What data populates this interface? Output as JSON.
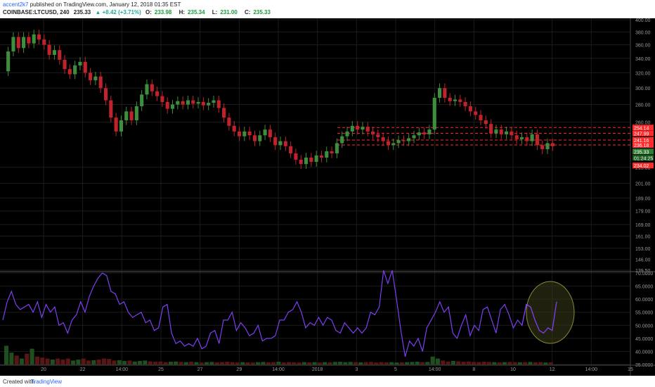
{
  "header": {
    "user": "accent2k7",
    "published": "published on TradingView.com, January 12, 2018 01:35 EST",
    "symbol": "COINBASE:LTCUSD, 240",
    "last": "235.33",
    "change": "▲ +8.42 (+3.71%)",
    "o_label": "O:",
    "o_value": "233.98",
    "h_label": "H:",
    "h_value": "235.34",
    "l_label": "L:",
    "l_value": "231.00",
    "c_label": "C:",
    "c_value": "235.33"
  },
  "footer": {
    "created_with": "Created with",
    "brand": "TradingView"
  },
  "colors": {
    "up": "#3e8e3e",
    "down": "#c0232b",
    "rsi": "#7e3ff2",
    "level": "#ff2a2a",
    "grid": "#1c1c1c",
    "axis_text": "#9a9a9a",
    "circle_fill": "#3a3a1a",
    "circle_stroke": "#8a8a3a"
  },
  "chart_data": [
    {
      "type": "candlestick",
      "title": "",
      "ylim": [
        139.5,
        400
      ],
      "log_scale": true,
      "price_ticks": [
        "400.00",
        "380.00",
        "360.00",
        "340.00",
        "320.00",
        "300.00",
        "280.00",
        "260.00",
        "215.00",
        "201.00",
        "189.00",
        "179.00",
        "169.00",
        "161.00",
        "153.00",
        "146.00",
        "139.50"
      ],
      "x_ticks": [
        "20",
        "22",
        "14:00",
        "25",
        "27",
        "29",
        "14:00",
        "2018",
        "3",
        "5",
        "14:00",
        "8",
        "10",
        "12",
        "14:00",
        "15"
      ],
      "levels": [
        254.14,
        247.99,
        241.16,
        236.18
      ],
      "badges": [
        {
          "label": "254.14",
          "kind": "level"
        },
        {
          "label": "247.99",
          "kind": "level"
        },
        {
          "label": "241.16",
          "kind": "level"
        },
        {
          "label": "236.18",
          "kind": "level"
        },
        {
          "label": "235.33",
          "kind": "last"
        },
        {
          "label": "01:24:25",
          "kind": "timer"
        },
        {
          "label": "234.02",
          "kind": "level"
        }
      ],
      "candles": [
        [
          322,
          350
        ],
        [
          350,
          372
        ],
        [
          372,
          355
        ],
        [
          355,
          372
        ],
        [
          372,
          362
        ],
        [
          362,
          376
        ],
        [
          376,
          368
        ],
        [
          368,
          360
        ],
        [
          360,
          345
        ],
        [
          345,
          352
        ],
        [
          352,
          338
        ],
        [
          338,
          325
        ],
        [
          325,
          318
        ],
        [
          318,
          330
        ],
        [
          330,
          335
        ],
        [
          335,
          320
        ],
        [
          320,
          310
        ],
        [
          310,
          315
        ],
        [
          315,
          300
        ],
        [
          300,
          285
        ],
        [
          285,
          265
        ],
        [
          265,
          250
        ],
        [
          250,
          262
        ],
        [
          262,
          272
        ],
        [
          272,
          262
        ],
        [
          262,
          278
        ],
        [
          278,
          292
        ],
        [
          292,
          305
        ],
        [
          305,
          296
        ],
        [
          296,
          290
        ],
        [
          290,
          283
        ],
        [
          283,
          275
        ],
        [
          275,
          280
        ],
        [
          280,
          284
        ],
        [
          284,
          280
        ],
        [
          280,
          285
        ],
        [
          285,
          281
        ],
        [
          281,
          283
        ],
        [
          283,
          279
        ],
        [
          279,
          282
        ],
        [
          282,
          285
        ],
        [
          285,
          276
        ],
        [
          276,
          265
        ],
        [
          265,
          256
        ],
        [
          256,
          250
        ],
        [
          250,
          245
        ],
        [
          245,
          250
        ],
        [
          250,
          246
        ],
        [
          246,
          240
        ],
        [
          240,
          246
        ],
        [
          246,
          252
        ],
        [
          252,
          244
        ],
        [
          244,
          236
        ],
        [
          236,
          240
        ],
        [
          240,
          235
        ],
        [
          235,
          228
        ],
        [
          228,
          222
        ],
        [
          222,
          218
        ],
        [
          218,
          224
        ],
        [
          224,
          220
        ],
        [
          220,
          226
        ],
        [
          226,
          224
        ],
        [
          224,
          230
        ],
        [
          230,
          228
        ],
        [
          228,
          238
        ],
        [
          238,
          245
        ],
        [
          245,
          250
        ],
        [
          250,
          256
        ],
        [
          256,
          252
        ],
        [
          252,
          255
        ],
        [
          255,
          250
        ],
        [
          250,
          247
        ],
        [
          247,
          244
        ],
        [
          244,
          240
        ],
        [
          240,
          236
        ],
        [
          236,
          238
        ],
        [
          238,
          241
        ],
        [
          241,
          240
        ],
        [
          240,
          243
        ],
        [
          243,
          246
        ],
        [
          246,
          249
        ],
        [
          249,
          247
        ],
        [
          247,
          252
        ],
        [
          252,
          288
        ],
        [
          288,
          300
        ],
        [
          300,
          288
        ],
        [
          288,
          284
        ],
        [
          284,
          286
        ],
        [
          286,
          283
        ],
        [
          283,
          278
        ],
        [
          278,
          272
        ],
        [
          272,
          268
        ],
        [
          268,
          262
        ],
        [
          262,
          258
        ],
        [
          258,
          248
        ],
        [
          248,
          252
        ],
        [
          252,
          247
        ],
        [
          247,
          250
        ],
        [
          250,
          246
        ],
        [
          246,
          242
        ],
        [
          242,
          244
        ],
        [
          244,
          240
        ],
        [
          240,
          247
        ],
        [
          247,
          236
        ],
        [
          236,
          232
        ],
        [
          232,
          238
        ],
        [
          238,
          235
        ]
      ],
      "volume": [
        0.95,
        0.6,
        0.45,
        0.3,
        0.55,
        0.8,
        0.4,
        0.35,
        0.3,
        0.25,
        0.3,
        0.25,
        0.3,
        0.2,
        0.25,
        0.3,
        0.2,
        0.22,
        0.25,
        0.3,
        0.28,
        0.2,
        0.22,
        0.18,
        0.2,
        0.15,
        0.18,
        0.2,
        0.16,
        0.14,
        0.15,
        0.12,
        0.14,
        0.15,
        0.13,
        0.12,
        0.14,
        0.12,
        0.1,
        0.12,
        0.13,
        0.11,
        0.12,
        0.14,
        0.12,
        0.1,
        0.12,
        0.11,
        0.1,
        0.12,
        0.13,
        0.11,
        0.12,
        0.14,
        0.1,
        0.12,
        0.11,
        0.1,
        0.12,
        0.11,
        0.12,
        0.1,
        0.12,
        0.11,
        0.13,
        0.14,
        0.12,
        0.13,
        0.12,
        0.11,
        0.12,
        0.13,
        0.1,
        0.12,
        0.11,
        0.12,
        0.1,
        0.11,
        0.12,
        0.13,
        0.14,
        0.12,
        0.13,
        0.4,
        0.3,
        0.2,
        0.15,
        0.18,
        0.16,
        0.14,
        0.15,
        0.13,
        0.12,
        0.14,
        0.13,
        0.12,
        0.11,
        0.12,
        0.13,
        0.12,
        0.11,
        0.12,
        0.13,
        0.11,
        0.12,
        0.1,
        0.11
      ]
    },
    {
      "type": "line",
      "name": "",
      "ylim": [
        35,
        70
      ],
      "y_ticks": [
        "70.0000",
        "65.0000",
        "60.0000",
        "55.0000",
        "50.0000",
        "45.0000",
        "40.0000",
        "35.0000"
      ],
      "values": [
        52,
        59,
        63,
        58,
        56,
        57,
        58,
        55,
        59,
        53,
        58,
        55,
        57,
        50,
        51,
        47,
        52,
        54,
        59,
        55,
        61,
        65,
        68,
        70,
        69,
        63,
        62,
        58,
        59,
        55,
        53,
        54,
        55,
        51,
        52,
        48,
        49,
        57,
        58,
        47,
        43,
        44,
        42,
        43,
        42,
        45,
        41,
        42,
        47,
        48,
        43,
        52,
        52,
        55,
        48,
        51,
        49,
        46,
        47,
        50,
        44,
        45,
        45,
        46,
        52,
        52,
        55,
        56,
        59,
        55,
        49,
        51,
        50,
        53,
        50,
        53,
        52,
        48,
        47,
        51,
        49,
        47,
        49,
        47,
        49,
        55,
        54,
        57,
        71,
        66,
        71,
        60,
        48,
        38,
        44,
        42,
        45,
        40,
        49,
        52,
        55,
        59,
        55,
        57,
        47,
        45,
        50,
        54,
        46,
        50,
        48,
        56,
        57,
        52,
        47,
        56,
        58,
        54,
        49,
        52,
        50,
        58,
        57,
        52,
        48,
        47,
        49,
        48,
        59
      ]
    }
  ]
}
